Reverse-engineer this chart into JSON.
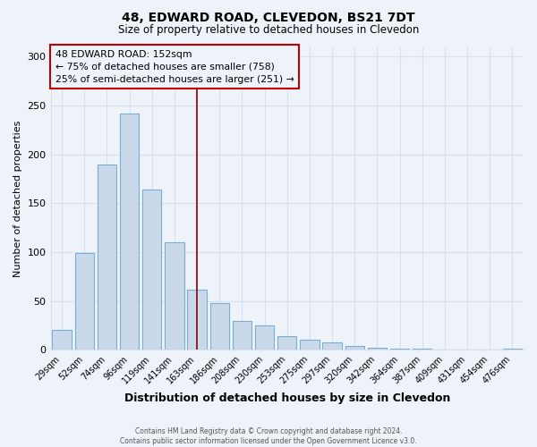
{
  "title": "48, EDWARD ROAD, CLEVEDON, BS21 7DT",
  "subtitle": "Size of property relative to detached houses in Clevedon",
  "xlabel": "Distribution of detached houses by size in Clevedon",
  "ylabel": "Number of detached properties",
  "footer_lines": [
    "Contains HM Land Registry data © Crown copyright and database right 2024.",
    "Contains public sector information licensed under the Open Government Licence v3.0."
  ],
  "bin_labels": [
    "29sqm",
    "52sqm",
    "74sqm",
    "96sqm",
    "119sqm",
    "141sqm",
    "163sqm",
    "186sqm",
    "208sqm",
    "230sqm",
    "253sqm",
    "275sqm",
    "297sqm",
    "320sqm",
    "342sqm",
    "364sqm",
    "387sqm",
    "409sqm",
    "431sqm",
    "454sqm",
    "476sqm"
  ],
  "bar_heights": [
    20,
    99,
    190,
    242,
    164,
    110,
    62,
    48,
    30,
    25,
    14,
    10,
    8,
    4,
    2,
    1,
    1,
    0,
    0,
    0,
    1
  ],
  "bar_color": "#c9d9ea",
  "bar_edge_color": "#7aadd4",
  "marker_bin_index": 6,
  "marker_line_color": "#8b0000",
  "annotation_text": "48 EDWARD ROAD: 152sqm\n← 75% of detached houses are smaller (758)\n25% of semi-detached houses are larger (251) →",
  "annotation_box_color": "#c00000",
  "ylim": [
    0,
    310
  ],
  "yticks": [
    0,
    50,
    100,
    150,
    200,
    250,
    300
  ],
  "background_color": "#eef2f9",
  "grid_color": "#d8e0ee",
  "bar_width": 0.85
}
